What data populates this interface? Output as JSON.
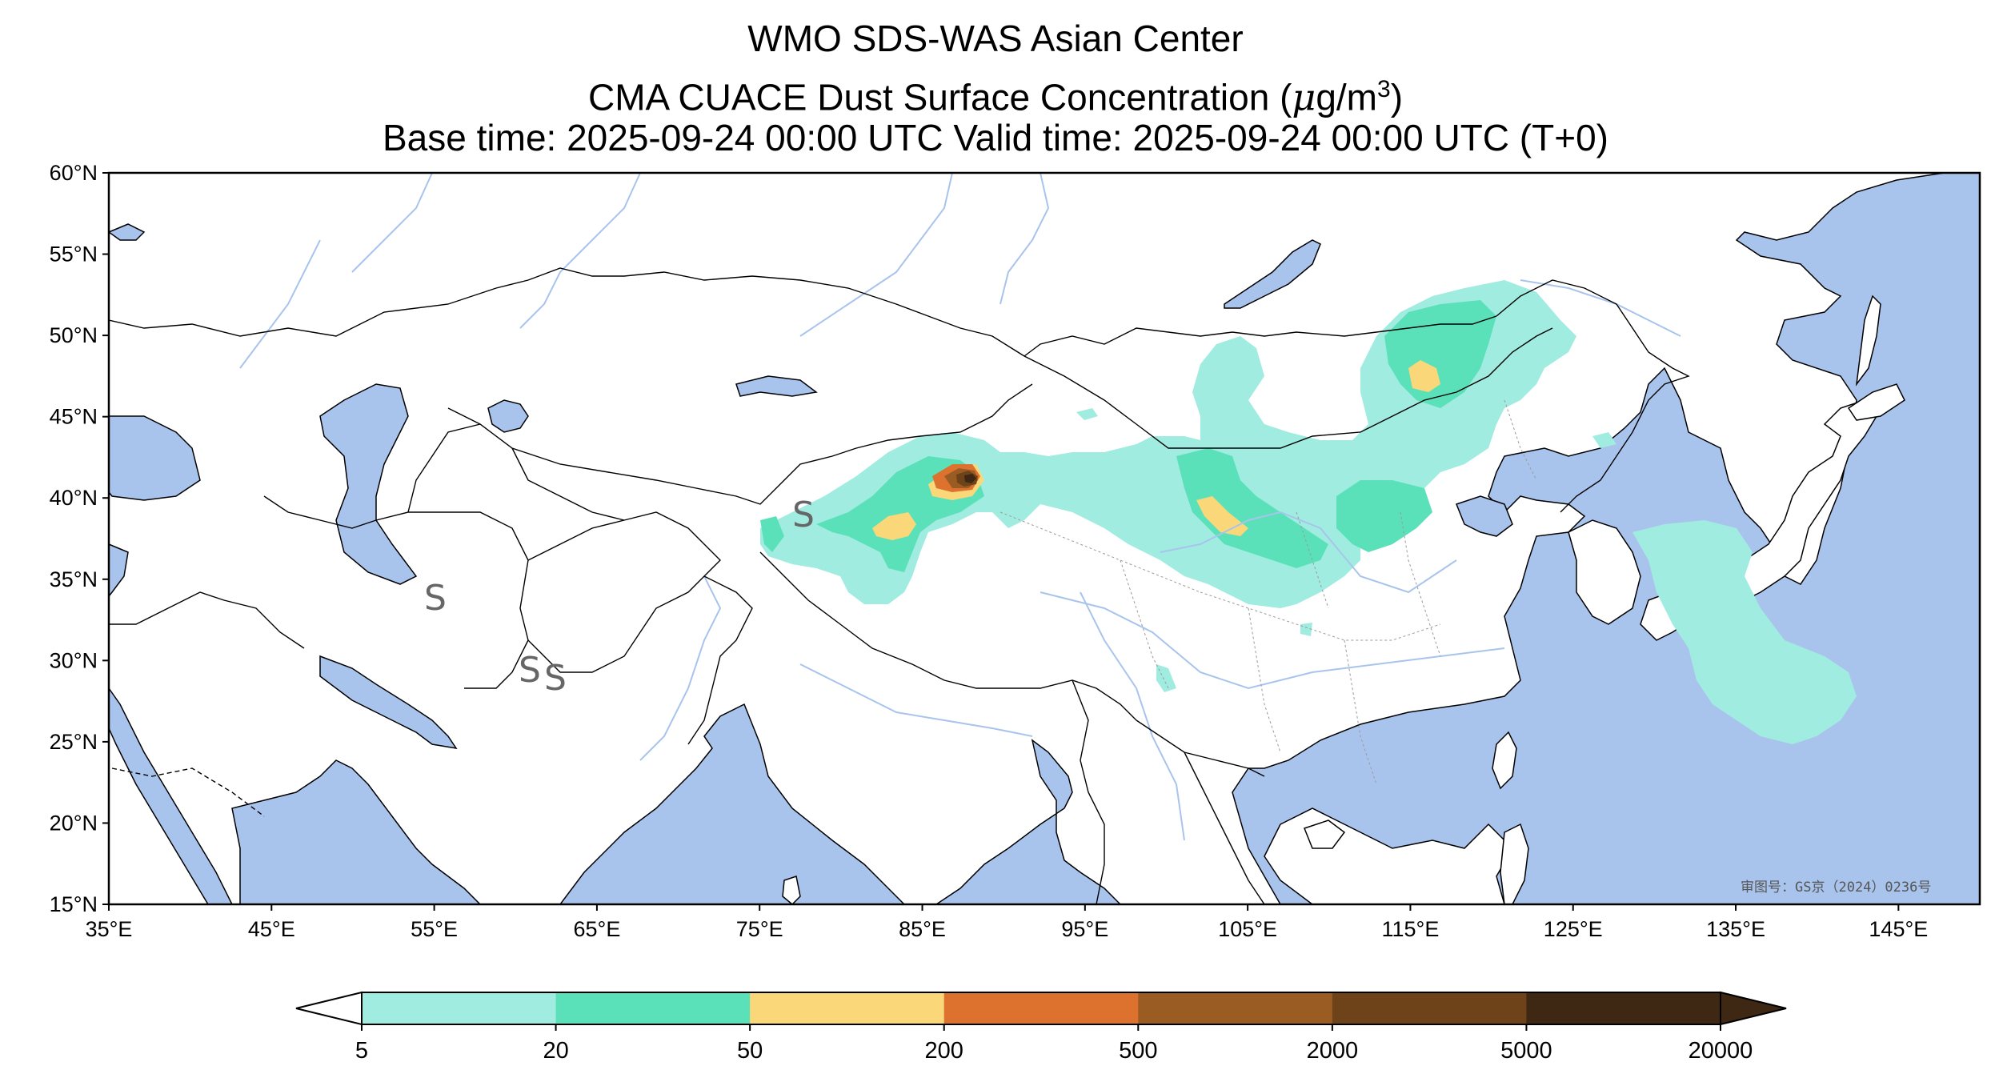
{
  "title": {
    "line1": "WMO SDS-WAS Asian Center",
    "line2_prefix": "CMA CUACE Dust Surface Concentration (",
    "line2_mu": "μ",
    "line2_unit": "g/m",
    "line2_exp": "3",
    "line2_suffix": ")",
    "line3": "Base time: 2025-09-24 00:00 UTC Valid time: 2025-09-24 00:00 UTC (T+0)"
  },
  "map": {
    "lon_range": [
      35,
      150
    ],
    "lat_range": [
      15,
      60
    ],
    "lon_ticks": [
      "35°E",
      "45°E",
      "55°E",
      "65°E",
      "75°E",
      "85°E",
      "95°E",
      "105°E",
      "115°E",
      "125°E",
      "135°E",
      "145°E"
    ],
    "lat_ticks": [
      "60°N",
      "55°N",
      "50°N",
      "45°N",
      "40°N",
      "35°N",
      "30°N",
      "25°N",
      "20°N",
      "15°N"
    ],
    "stamp": "审图号：GS京（2024）0236号",
    "weather_symbol": "S",
    "colors": {
      "ocean": "#a9c4ec",
      "river": "#a9c4ec",
      "land": "#ffffff",
      "border": "#000000"
    }
  },
  "colorbar": {
    "ticks": [
      "5",
      "20",
      "50",
      "200",
      "500",
      "2000",
      "5000",
      "20000"
    ],
    "colors": [
      "#a1ece0",
      "#5be1b9",
      "#fad87a",
      "#dd722f",
      "#9b5c24",
      "#6e4319",
      "#3e2713"
    ]
  }
}
